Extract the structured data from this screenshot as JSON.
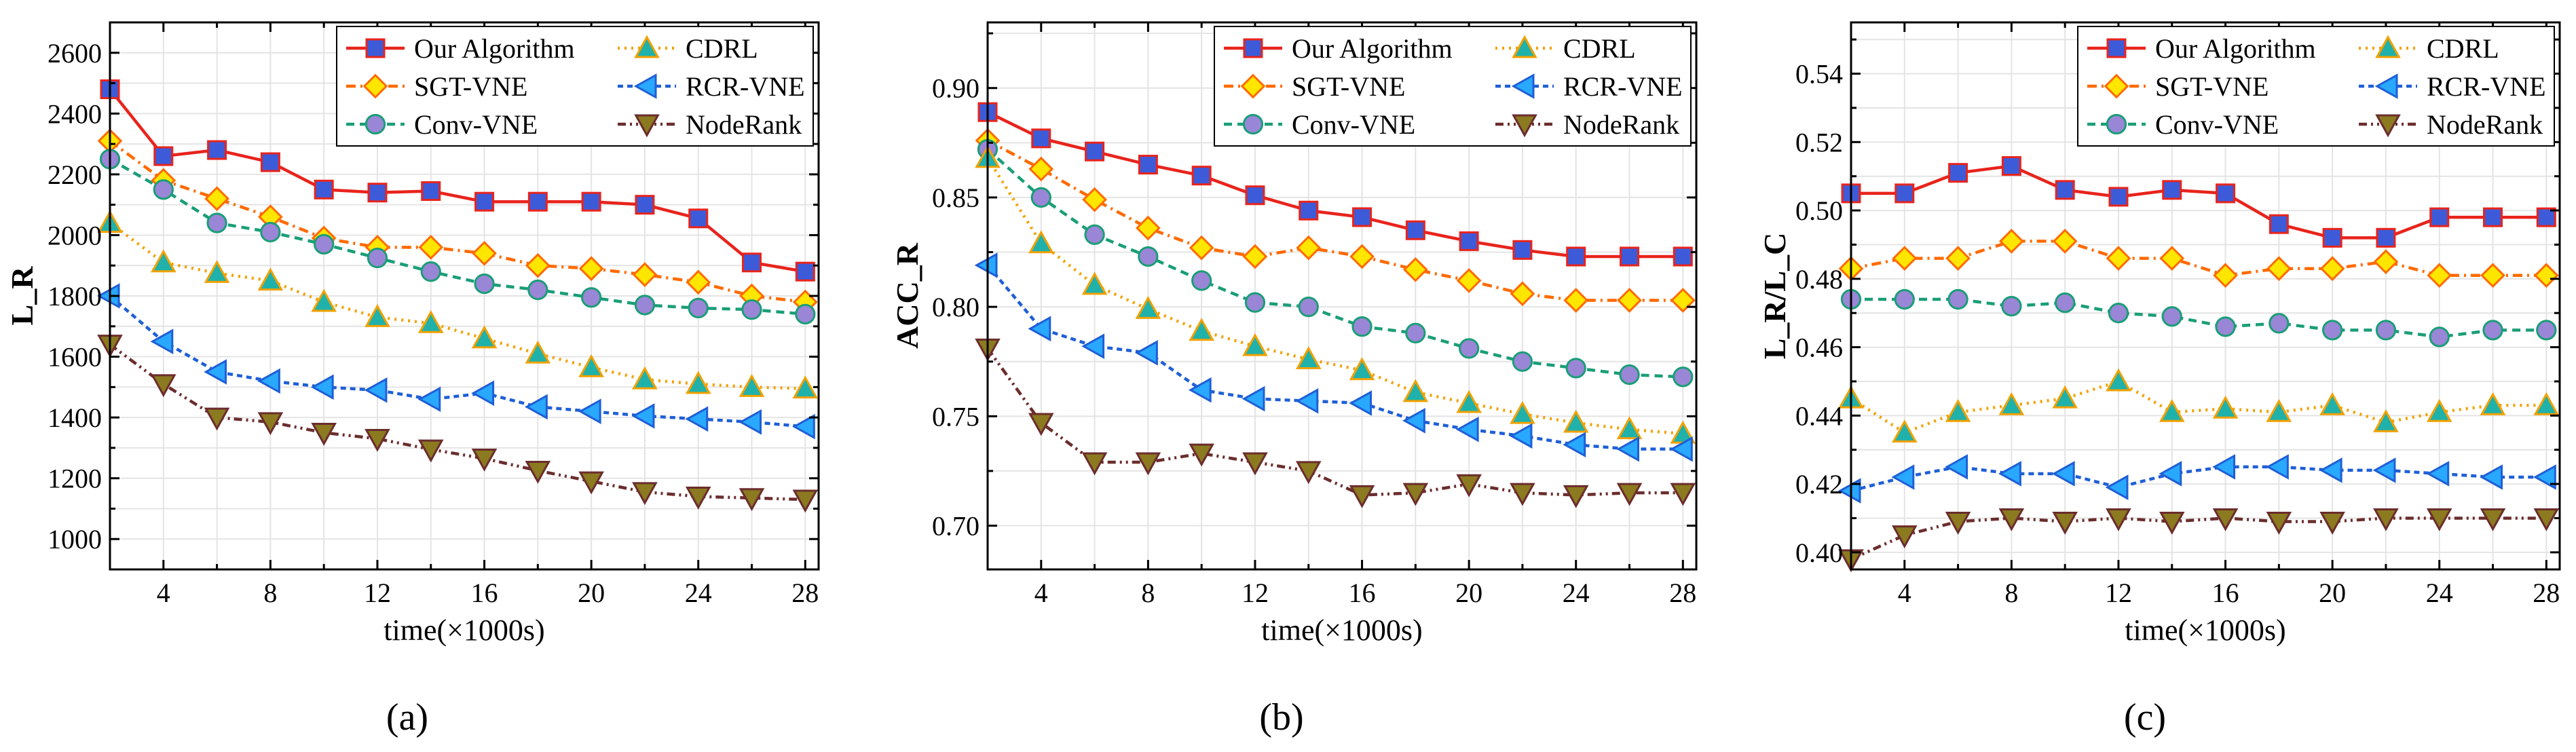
{
  "figure": {
    "panel_labels": [
      "(a)",
      "(b)",
      "(c)"
    ]
  },
  "series_styles": [
    {
      "name": "Our Algorithm",
      "color": "#e8241c",
      "fill": "#3d5bd9",
      "marker": "square",
      "dash": "solid"
    },
    {
      "name": "SGT-VNE",
      "color": "#ff6a00",
      "fill": "#ffe600",
      "marker": "diamond",
      "dash": "dashdot"
    },
    {
      "name": "Conv-VNE",
      "color": "#1a9e77",
      "fill": "#9a86d6",
      "marker": "circle",
      "dash": "dashed"
    },
    {
      "name": "CDRL",
      "color": "#f2a100",
      "fill": "#20b2aa",
      "marker": "triangle-up",
      "dash": "dotted"
    },
    {
      "name": "RCR-VNE",
      "color": "#1f5fd6",
      "fill": "#29a8ff",
      "marker": "triangle-left",
      "dash": "shortdash"
    },
    {
      "name": "NodeRank",
      "color": "#6b2d2d",
      "fill": "#8b7a1f",
      "marker": "triangle-down",
      "dash": "dashdotdot"
    }
  ],
  "chart_data": [
    {
      "type": "line",
      "panel": "(a)",
      "xlabel": "time(×1000s)",
      "ylabel": "L_R",
      "xlim": [
        2,
        28.5
      ],
      "ylim": [
        900,
        2700
      ],
      "xticks": [
        4,
        8,
        12,
        16,
        20,
        24,
        28
      ],
      "yticks": [
        1000,
        1200,
        1400,
        1600,
        1800,
        2000,
        2200,
        2400,
        2600
      ],
      "x": [
        2,
        4,
        6,
        8,
        10,
        12,
        14,
        16,
        18,
        20,
        22,
        24,
        26,
        28
      ],
      "series": [
        {
          "name": "Our Algorithm",
          "values": [
            2480,
            2260,
            2280,
            2240,
            2150,
            2140,
            2145,
            2110,
            2110,
            2110,
            2100,
            2055,
            1910,
            1880
          ]
        },
        {
          "name": "SGT-VNE",
          "values": [
            2310,
            2180,
            2120,
            2060,
            1990,
            1960,
            1960,
            1940,
            1900,
            1890,
            1870,
            1845,
            1800,
            1780
          ]
        },
        {
          "name": "Conv-VNE",
          "values": [
            2250,
            2150,
            2040,
            2010,
            1970,
            1925,
            1880,
            1840,
            1820,
            1795,
            1770,
            1760,
            1755,
            1740
          ]
        },
        {
          "name": "CDRL",
          "values": [
            2040,
            1910,
            1875,
            1850,
            1780,
            1730,
            1710,
            1660,
            1610,
            1565,
            1525,
            1510,
            1500,
            1495
          ]
        },
        {
          "name": "RCR-VNE",
          "values": [
            1800,
            1650,
            1550,
            1520,
            1500,
            1490,
            1460,
            1480,
            1435,
            1420,
            1405,
            1395,
            1385,
            1370
          ]
        },
        {
          "name": "NodeRank",
          "values": [
            1640,
            1510,
            1400,
            1385,
            1350,
            1330,
            1295,
            1265,
            1225,
            1190,
            1155,
            1140,
            1135,
            1130
          ]
        }
      ],
      "legend": "top-right"
    },
    {
      "type": "line",
      "panel": "(b)",
      "xlabel": "time(×1000s)",
      "ylabel": "ACC_R",
      "xlim": [
        2,
        28.5
      ],
      "ylim": [
        0.68,
        0.93
      ],
      "xticks": [
        4,
        8,
        12,
        16,
        20,
        24,
        28
      ],
      "yticks": [
        0.7,
        0.75,
        0.8,
        0.85,
        0.9
      ],
      "ytick_labels": [
        "0.70",
        "0.75",
        "0.80",
        "0.85",
        "0.90"
      ],
      "x": [
        2,
        4,
        6,
        8,
        10,
        12,
        14,
        16,
        18,
        20,
        22,
        24,
        26,
        28
      ],
      "series": [
        {
          "name": "Our Algorithm",
          "values": [
            0.889,
            0.877,
            0.871,
            0.865,
            0.86,
            0.851,
            0.844,
            0.841,
            0.835,
            0.83,
            0.826,
            0.823,
            0.823,
            0.823
          ]
        },
        {
          "name": "SGT-VNE",
          "values": [
            0.876,
            0.863,
            0.849,
            0.836,
            0.827,
            0.823,
            0.827,
            0.823,
            0.817,
            0.812,
            0.806,
            0.803,
            0.803,
            0.803
          ]
        },
        {
          "name": "Conv-VNE",
          "values": [
            0.872,
            0.85,
            0.833,
            0.823,
            0.812,
            0.802,
            0.8,
            0.791,
            0.788,
            0.781,
            0.775,
            0.772,
            0.769,
            0.768
          ]
        },
        {
          "name": "CDRL",
          "values": [
            0.868,
            0.829,
            0.81,
            0.799,
            0.789,
            0.782,
            0.776,
            0.771,
            0.761,
            0.756,
            0.751,
            0.747,
            0.744,
            0.742
          ]
        },
        {
          "name": "RCR-VNE",
          "values": [
            0.819,
            0.79,
            0.782,
            0.779,
            0.762,
            0.758,
            0.757,
            0.756,
            0.748,
            0.744,
            0.741,
            0.737,
            0.735,
            0.735
          ]
        },
        {
          "name": "NodeRank",
          "values": [
            0.781,
            0.747,
            0.729,
            0.729,
            0.733,
            0.729,
            0.725,
            0.714,
            0.715,
            0.719,
            0.715,
            0.714,
            0.715,
            0.715
          ]
        }
      ],
      "legend": "top-right"
    },
    {
      "type": "line",
      "panel": "(c)",
      "xlabel": "time(×1000s)",
      "ylabel": "L_R/L_C",
      "xlim": [
        2,
        28.5
      ],
      "ylim": [
        0.395,
        0.555
      ],
      "xticks": [
        4,
        8,
        12,
        16,
        20,
        24,
        28
      ],
      "yticks": [
        0.4,
        0.42,
        0.44,
        0.46,
        0.48,
        0.5,
        0.52,
        0.54
      ],
      "ytick_labels": [
        "0.40",
        "0.42",
        "0.44",
        "0.46",
        "0.48",
        "0.50",
        "0.52",
        "0.54"
      ],
      "x": [
        2,
        4,
        6,
        8,
        10,
        12,
        14,
        16,
        18,
        20,
        22,
        24,
        26,
        28
      ],
      "series": [
        {
          "name": "Our Algorithm",
          "values": [
            0.505,
            0.505,
            0.511,
            0.513,
            0.506,
            0.504,
            0.506,
            0.505,
            0.496,
            0.492,
            0.492,
            0.498,
            0.498,
            0.498
          ]
        },
        {
          "name": "SGT-VNE",
          "values": [
            0.483,
            0.486,
            0.486,
            0.491,
            0.491,
            0.486,
            0.486,
            0.481,
            0.483,
            0.483,
            0.485,
            0.481,
            0.481,
            0.481
          ]
        },
        {
          "name": "Conv-VNE",
          "values": [
            0.474,
            0.474,
            0.474,
            0.472,
            0.473,
            0.47,
            0.469,
            0.466,
            0.467,
            0.465,
            0.465,
            0.463,
            0.465,
            0.465
          ]
        },
        {
          "name": "CDRL",
          "values": [
            0.445,
            0.435,
            0.441,
            0.443,
            0.445,
            0.45,
            0.441,
            0.442,
            0.441,
            0.443,
            0.438,
            0.441,
            0.443,
            0.443
          ]
        },
        {
          "name": "RCR-VNE",
          "values": [
            0.418,
            0.422,
            0.425,
            0.423,
            0.423,
            0.419,
            0.423,
            0.425,
            0.425,
            0.424,
            0.424,
            0.423,
            0.422,
            0.422
          ]
        },
        {
          "name": "NodeRank",
          "values": [
            0.398,
            0.405,
            0.409,
            0.41,
            0.409,
            0.41,
            0.409,
            0.41,
            0.409,
            0.409,
            0.41,
            0.41,
            0.41,
            0.41
          ]
        }
      ],
      "legend": "top-right"
    }
  ]
}
